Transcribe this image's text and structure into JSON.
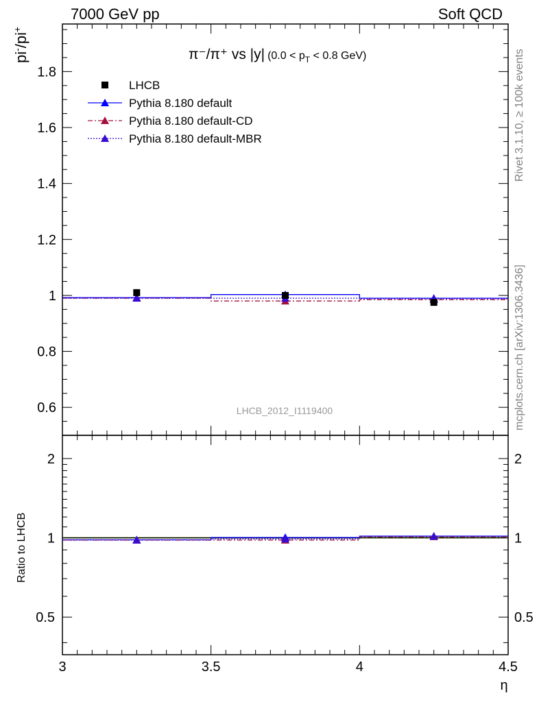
{
  "header": {
    "left": "7000 GeV pp",
    "right": "Soft QCD"
  },
  "side_labels": {
    "rivet": "Rivet 3.1.10, ≥ 100k events",
    "source": "mcplots.cern.ch [arXiv:1306.3436]"
  },
  "watermark": "LHCB_2012_I1119400",
  "main_title": {
    "part1": "π⁻/π⁺ vs |y|",
    "part2": "(0.0 < p",
    "sub": "T",
    "part3": " < 0.8 GeV)"
  },
  "ylabel_main": {
    "base1": "pi",
    "sup1": "-",
    "base2": "/pi",
    "sup2": "+"
  },
  "ylabel_ratio": "Ratio to LHCB",
  "xlabel": "η",
  "colors": {
    "data": "#000000",
    "default": "#0000ff",
    "cd": "#a5113f",
    "mbr": "#3a0bd0",
    "band": "#ccff66",
    "band_line": "#9acd32"
  },
  "chart_data": [
    {
      "type": "scatter",
      "panel": "main",
      "xlim": [
        3.0,
        4.5
      ],
      "ylim": [
        0.5,
        1.97
      ],
      "yticks": [
        0.6,
        0.8,
        1.0,
        1.2,
        1.4,
        1.6,
        1.8
      ],
      "ytick_labels": [
        "0.6",
        "0.8",
        "1",
        "1.2",
        "1.4",
        "1.6",
        "1.8"
      ],
      "legend_position": "top-left",
      "series": [
        {
          "name": "LHCB",
          "key": "data",
          "marker": "square",
          "dash": "none",
          "x": [
            3.25,
            3.75,
            4.25
          ],
          "y": [
            1.01,
            1.0,
            0.975
          ]
        },
        {
          "name": "Pythia 8.180 default",
          "key": "default",
          "marker": "triangle",
          "dash": "solid",
          "x": [
            3.25,
            3.75,
            4.25
          ],
          "y": [
            0.992,
            1.003,
            0.99
          ]
        },
        {
          "name": "Pythia 8.180 default-CD",
          "key": "cd",
          "marker": "triangle",
          "dash": "dashdot",
          "x": [
            3.25,
            3.75,
            4.25
          ],
          "y": [
            0.99,
            0.98,
            0.985
          ]
        },
        {
          "name": "Pythia 8.180 default-MBR",
          "key": "mbr",
          "marker": "triangle",
          "dash": "dotted",
          "x": [
            3.25,
            3.75,
            4.25
          ],
          "y": [
            0.99,
            0.99,
            0.988
          ]
        }
      ]
    },
    {
      "type": "scatter",
      "panel": "ratio",
      "xlim": [
        3.0,
        4.5
      ],
      "ylim": [
        0.36,
        2.45
      ],
      "log_y": true,
      "yticks": [
        0.5,
        1,
        2
      ],
      "ytick_labels": [
        "0.5",
        "1",
        "2"
      ],
      "xticks": [
        3,
        3.5,
        4,
        4.5
      ],
      "xtick_labels": [
        "3",
        "3.5",
        "4",
        "4.5"
      ],
      "series": [
        {
          "name": "Pythia 8.180 default",
          "key": "default",
          "marker": "triangle",
          "dash": "solid",
          "x": [
            3.25,
            3.75,
            4.25
          ],
          "y": [
            0.983,
            1.003,
            1.015
          ]
        },
        {
          "name": "Pythia 8.180 default-CD",
          "key": "cd",
          "marker": "triangle",
          "dash": "dashdot",
          "x": [
            3.25,
            3.75,
            4.25
          ],
          "y": [
            0.98,
            0.98,
            1.01
          ]
        },
        {
          "name": "Pythia 8.180 default-MBR",
          "key": "mbr",
          "marker": "triangle",
          "dash": "dotted",
          "x": [
            3.25,
            3.75,
            4.25
          ],
          "y": [
            0.98,
            0.99,
            1.013
          ]
        }
      ]
    }
  ]
}
